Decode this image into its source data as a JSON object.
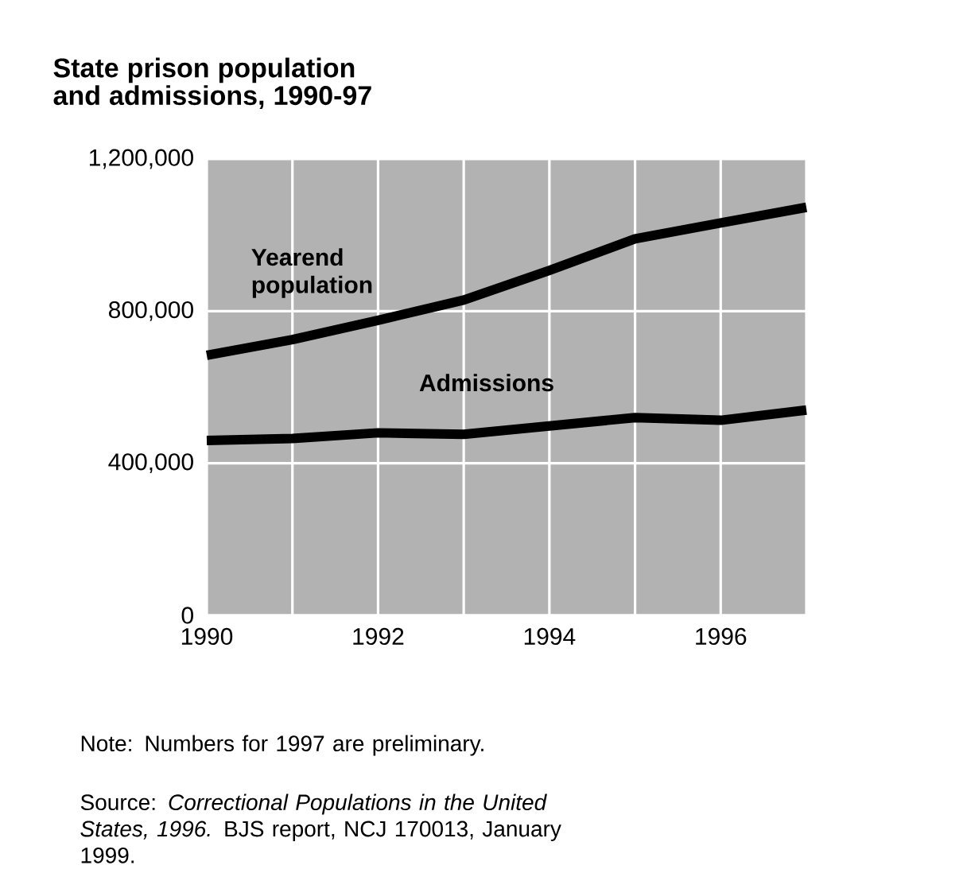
{
  "chart_data": {
    "type": "line",
    "title": "State prison population\nand admissions, 1990-97",
    "x": [
      1990,
      1991,
      1992,
      1993,
      1994,
      1995,
      1996,
      1997
    ],
    "series": [
      {
        "name": "Yearend population",
        "color": "#000000",
        "values": [
          684000,
          725000,
          776000,
          829000,
          907000,
          990000,
          1032000,
          1073000
        ]
      },
      {
        "name": "Admissions",
        "color": "#000000",
        "values": [
          460000,
          465000,
          480000,
          476000,
          498000,
          520000,
          513000,
          540000
        ]
      }
    ],
    "xlim": [
      1990,
      1997
    ],
    "xticks": [
      1990,
      {
        "value": 1991,
        "label": null
      },
      1992,
      {
        "value": 1993,
        "label": null
      },
      1994,
      {
        "value": 1995,
        "label": null
      },
      1996,
      {
        "value": 1997,
        "label": null
      }
    ],
    "ylim": [
      0,
      1200000
    ],
    "yticks": [
      0,
      {
        "value": 400000,
        "label": "400,000"
      },
      {
        "value": 800000,
        "label": "800,000"
      },
      {
        "value": 1200000,
        "label": "1,200,000"
      }
    ],
    "grid": true,
    "legend": false,
    "marker": "none",
    "line_style": "solid",
    "annotations": [
      "Note:  Numbers for 1997 are preliminary.",
      "Source:  *Correctional Populations in the United States, 1996.*  BJS report, NCJ 170013, January 1999."
    ]
  }
}
